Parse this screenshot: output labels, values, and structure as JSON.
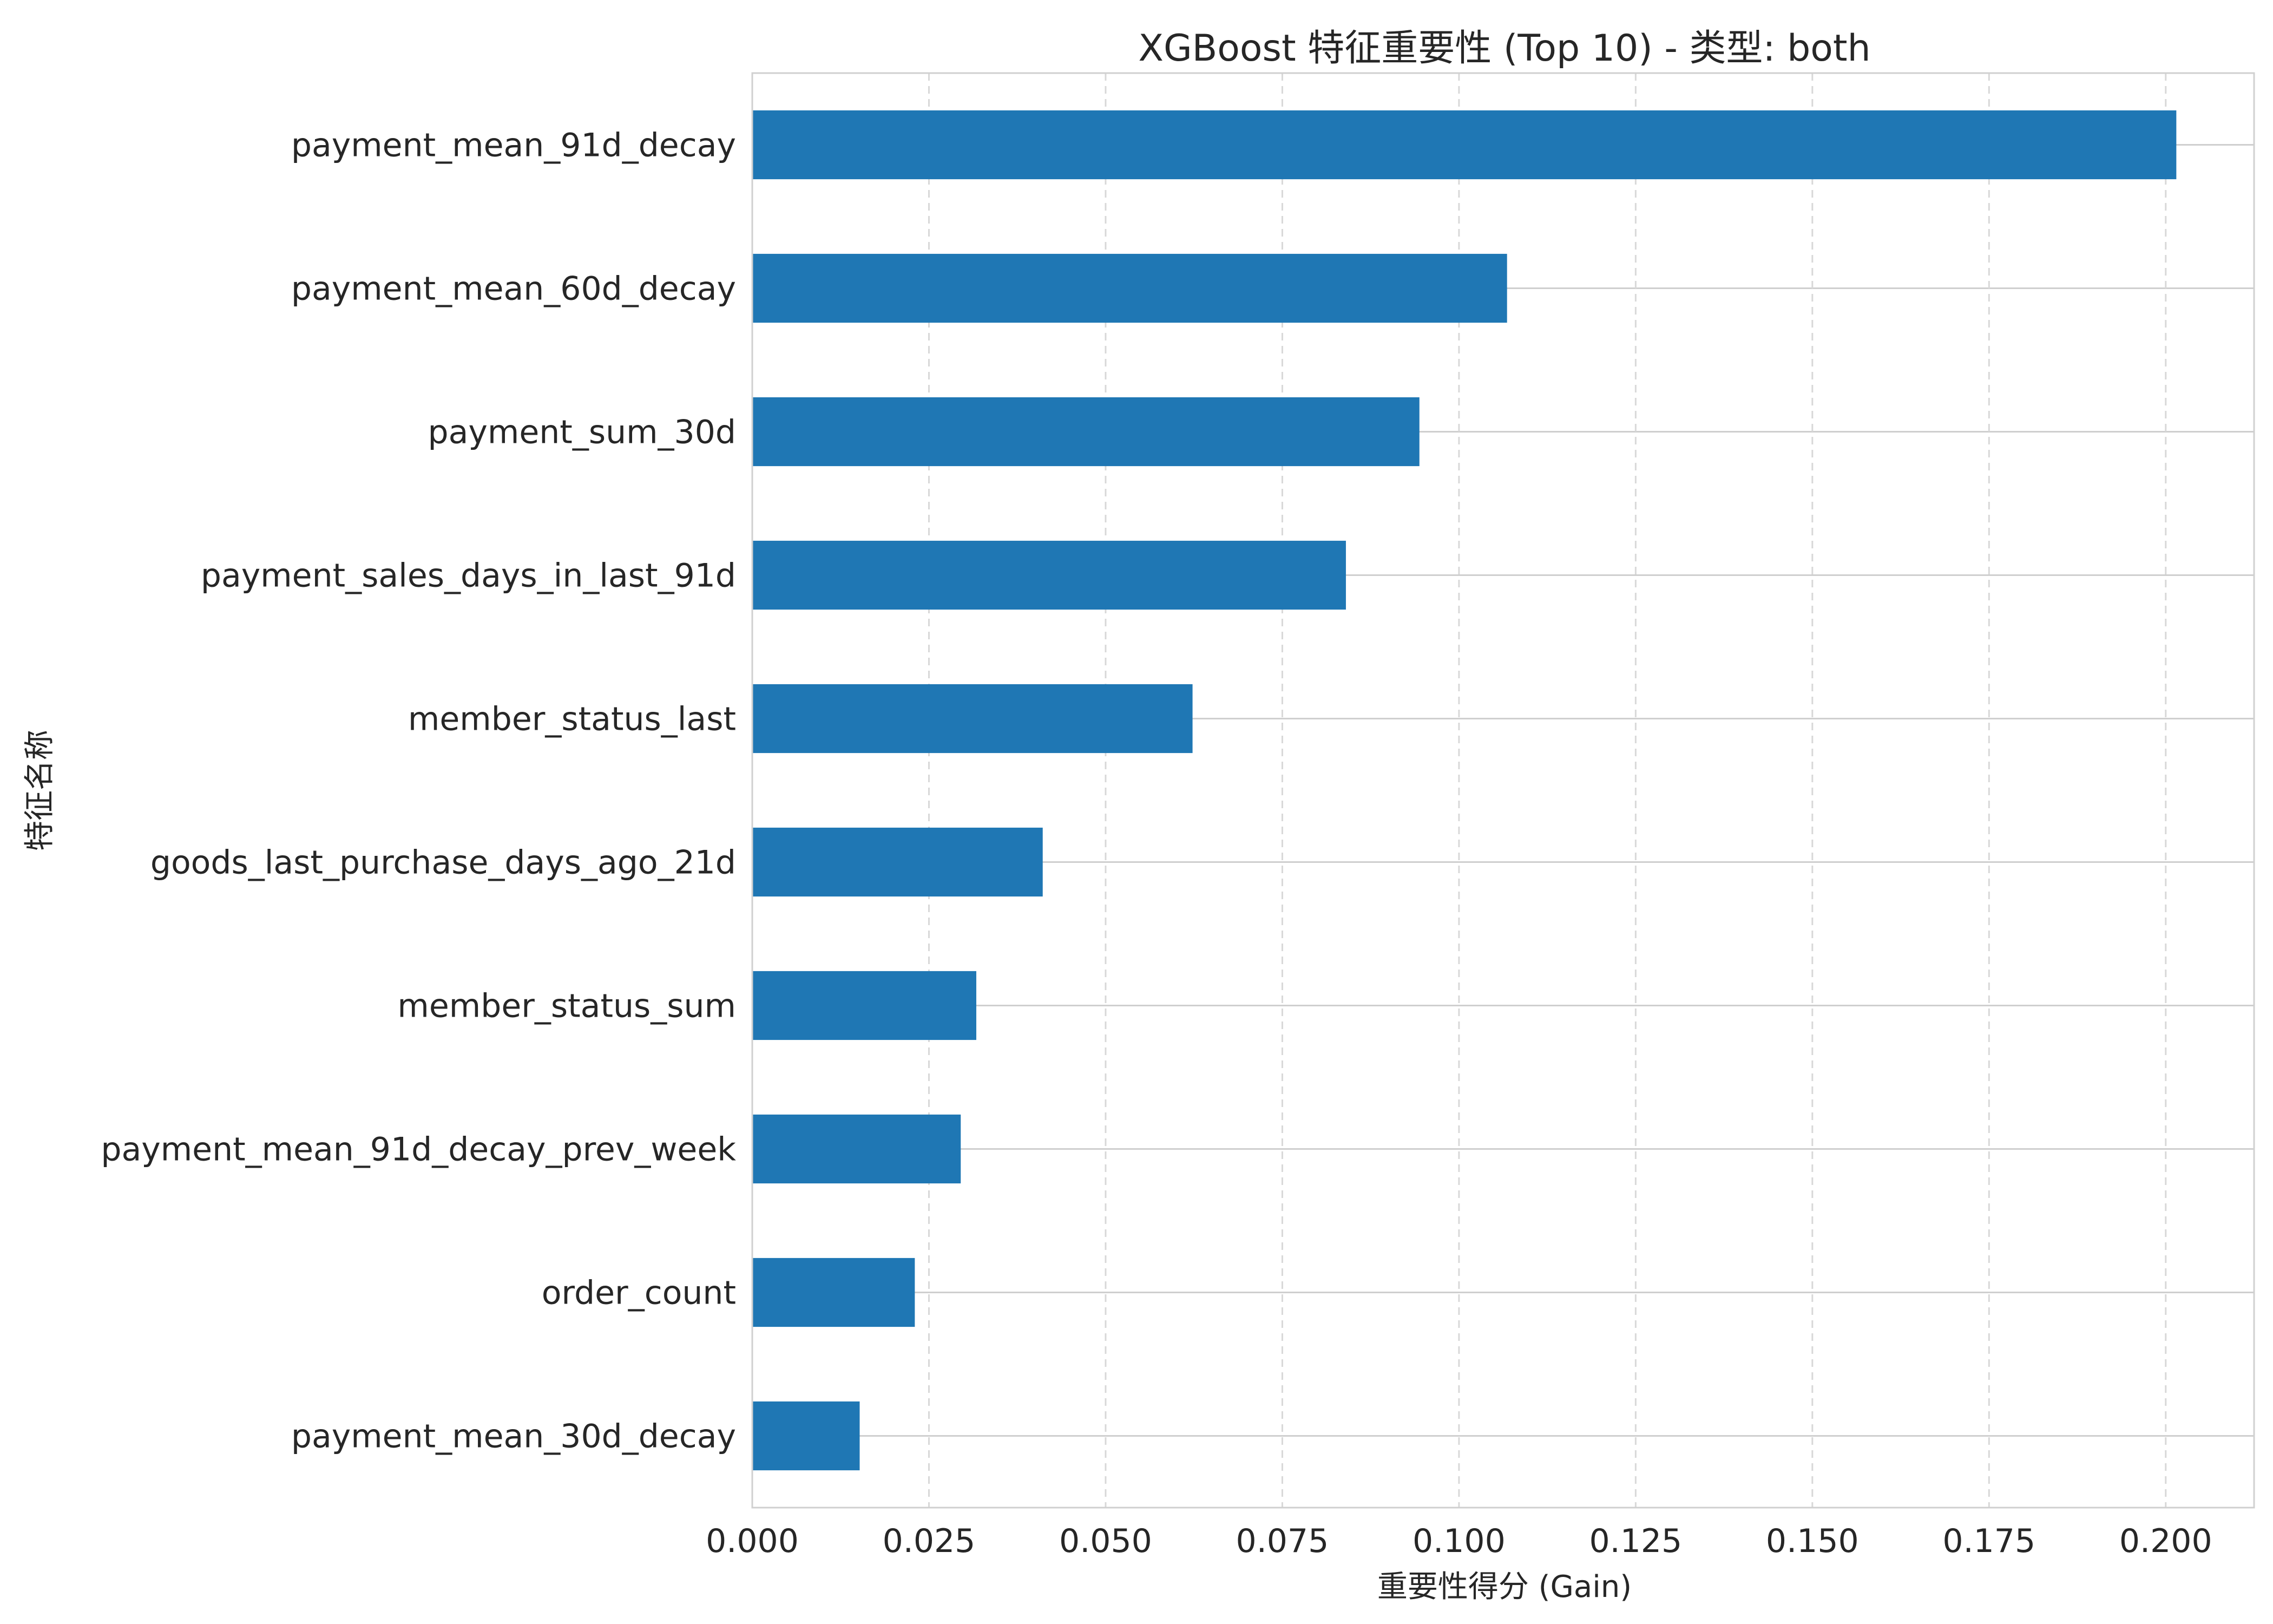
{
  "chart_data": {
    "type": "bar",
    "orientation": "horizontal",
    "title": "XGBoost 特征重要性 (Top 10) - 类型: both",
    "xlabel": "重要性得分 (Gain)",
    "ylabel": "特征名称",
    "categories": [
      "payment_mean_91d_decay",
      "payment_mean_60d_decay",
      "payment_sum_30d",
      "payment_sales_days_in_last_91d",
      "member_status_last",
      "goods_last_purchase_days_ago_21d",
      "member_status_sum",
      "payment_mean_91d_decay_prev_week",
      "order_count",
      "payment_mean_30d_decay"
    ],
    "values": [
      0.2015,
      0.1068,
      0.0944,
      0.084,
      0.0623,
      0.0411,
      0.0317,
      0.0295,
      0.023,
      0.0152
    ],
    "xlim": [
      0,
      0.2125
    ],
    "xticks": [
      "0.000",
      "0.025",
      "0.050",
      "0.075",
      "0.100",
      "0.125",
      "0.150",
      "0.175",
      "0.200"
    ],
    "xtick_values": [
      0,
      0.025,
      0.05,
      0.075,
      0.1,
      0.125,
      0.15,
      0.175,
      0.2
    ],
    "bar_color": "#1f77b4",
    "grid": true
  }
}
